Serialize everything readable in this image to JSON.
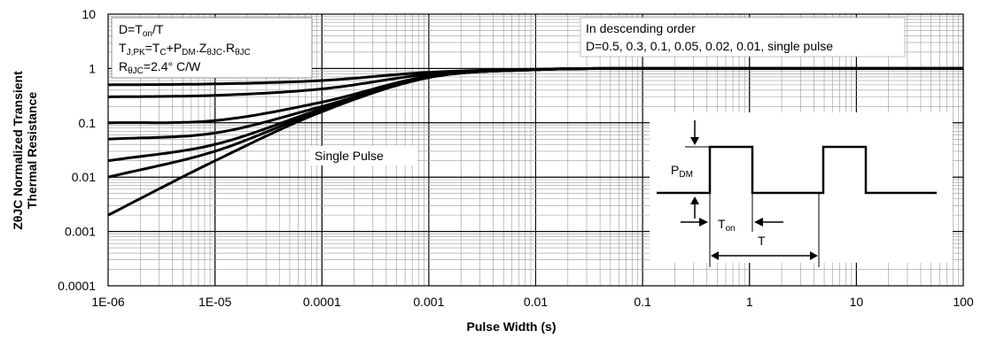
{
  "chart_data": {
    "type": "line",
    "x_scale": "log",
    "y_scale": "log",
    "xlim": [
      1e-06,
      100
    ],
    "ylim": [
      0.0001,
      10
    ],
    "x_tick_labels": [
      "1E-06",
      "1E-05",
      "0.0001",
      "0.001",
      "0.01",
      "0.1",
      "1",
      "10",
      "100"
    ],
    "y_tick_labels": [
      "0.0001",
      "0.001",
      "0.01",
      "0.1",
      "1",
      "10"
    ],
    "xlabel": "Pulse Width (s)",
    "ylabel_line1": "ZθJC Normalized Transient",
    "ylabel_line2": "Thermal Resistance",
    "grid": true,
    "series": [
      {
        "values": [
          [
            1e-06,
            0.5
          ],
          [
            1e-05,
            0.52
          ],
          [
            0.0001,
            0.6
          ],
          [
            0.001,
            0.85
          ],
          [
            0.01,
            0.97
          ],
          [
            0.1,
            1.0
          ],
          [
            100,
            1.0
          ]
        ]
      },
      {
        "values": [
          [
            1e-06,
            0.3
          ],
          [
            1e-05,
            0.32
          ],
          [
            0.0001,
            0.42
          ],
          [
            0.001,
            0.78
          ],
          [
            0.01,
            0.96
          ],
          [
            0.1,
            1.0
          ],
          [
            100,
            1.0
          ]
        ]
      },
      {
        "values": [
          [
            1e-06,
            0.1
          ],
          [
            1e-05,
            0.11
          ],
          [
            0.0001,
            0.24
          ],
          [
            0.001,
            0.72
          ],
          [
            0.01,
            0.95
          ],
          [
            0.1,
            1.0
          ],
          [
            100,
            1.0
          ]
        ]
      },
      {
        "values": [
          [
            1e-06,
            0.05
          ],
          [
            1e-05,
            0.065
          ],
          [
            0.0001,
            0.2
          ],
          [
            0.001,
            0.7
          ],
          [
            0.01,
            0.95
          ],
          [
            0.1,
            1.0
          ],
          [
            100,
            1.0
          ]
        ]
      },
      {
        "values": [
          [
            1e-06,
            0.02
          ],
          [
            1e-05,
            0.04
          ],
          [
            0.0001,
            0.18
          ],
          [
            0.001,
            0.69
          ],
          [
            0.01,
            0.95
          ],
          [
            0.1,
            1.0
          ],
          [
            100,
            1.0
          ]
        ]
      },
      {
        "values": [
          [
            1e-06,
            0.01
          ],
          [
            1e-05,
            0.03
          ],
          [
            0.0001,
            0.17
          ],
          [
            0.001,
            0.69
          ],
          [
            0.01,
            0.95
          ],
          [
            0.1,
            1.0
          ],
          [
            100,
            1.0
          ]
        ]
      },
      {
        "values": [
          [
            1e-06,
            0.002
          ],
          [
            1e-05,
            0.02
          ],
          [
            0.0001,
            0.16
          ],
          [
            0.001,
            0.68
          ],
          [
            0.01,
            0.95
          ],
          [
            0.1,
            1.0
          ],
          [
            100,
            1.0
          ]
        ]
      }
    ],
    "annotations": {
      "d_def_main": "D=T",
      "d_def_sub": "on",
      "d_def_tail": "/T",
      "tjpk_a": "T",
      "tjpk_a_sub": "J,PK",
      "tjpk_b": "=T",
      "tjpk_b_sub": "C",
      "tjpk_c": "+P",
      "tjpk_c_sub": "DM",
      "tjpk_d": ".Z",
      "tjpk_d_sub": "θJC",
      "tjpk_e": ".R",
      "tjpk_e_sub": "θJC",
      "rth_a": "R",
      "rth_a_sub": "θJC",
      "rth_b": "=2.4°  C/W",
      "order_line1": "In descending order",
      "order_line2": "D=0.5, 0.3, 0.1, 0.05, 0.02, 0.01, single pulse",
      "single_pulse": "Single Pulse",
      "pdm_main": "P",
      "pdm_sub": "DM",
      "ton_main": "T",
      "ton_sub": "on",
      "t_label": "T"
    }
  }
}
